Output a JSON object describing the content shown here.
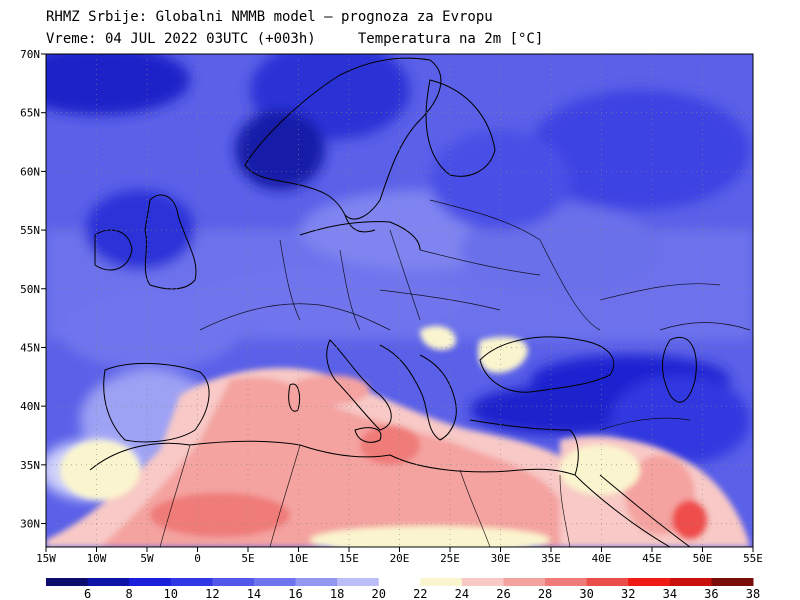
{
  "header": {
    "line1": "RHMZ Srbije: Globalni NMMB model — prognoza za Evropu",
    "line2": "Vreme: 04 JUL 2022 03UTC (+003h)     Temperatura na 2m [°C]"
  },
  "map": {
    "lon_range": [
      -15,
      55
    ],
    "lat_range": [
      28,
      70
    ],
    "lon_ticks": [
      {
        "value": -15,
        "label": "15W"
      },
      {
        "value": -10,
        "label": "10W"
      },
      {
        "value": -5,
        "label": "5W"
      },
      {
        "value": 0,
        "label": "0"
      },
      {
        "value": 5,
        "label": "5E"
      },
      {
        "value": 10,
        "label": "10E"
      },
      {
        "value": 15,
        "label": "15E"
      },
      {
        "value": 20,
        "label": "20E"
      },
      {
        "value": 25,
        "label": "25E"
      },
      {
        "value": 30,
        "label": "30E"
      },
      {
        "value": 35,
        "label": "35E"
      },
      {
        "value": 40,
        "label": "40E"
      },
      {
        "value": 45,
        "label": "45E"
      },
      {
        "value": 50,
        "label": "50E"
      },
      {
        "value": 55,
        "label": "55E"
      }
    ],
    "lat_ticks": [
      {
        "value": 70,
        "label": "70N"
      },
      {
        "value": 65,
        "label": "65N"
      },
      {
        "value": 60,
        "label": "60N"
      },
      {
        "value": 55,
        "label": "55N"
      },
      {
        "value": 50,
        "label": "50N"
      },
      {
        "value": 45,
        "label": "45N"
      },
      {
        "value": 40,
        "label": "40N"
      },
      {
        "value": 35,
        "label": "35N"
      },
      {
        "value": 30,
        "label": "30N"
      }
    ]
  },
  "colorbar": {
    "labels": [
      "6",
      "8",
      "10",
      "12",
      "14",
      "16",
      "18",
      "20",
      "22",
      "24",
      "26",
      "28",
      "30",
      "32",
      "34",
      "36",
      "38"
    ],
    "colors": [
      "#0b0c6b",
      "#0f14a8",
      "#1a1fdc",
      "#3237e6",
      "#5257ea",
      "#6f74ee",
      "#9397f2",
      "#babdf7",
      "#ffffff",
      "#fbf5cf",
      "#f8c9c6",
      "#f4a3a0",
      "#ef7c79",
      "#ea4e4b",
      "#ef1c16",
      "#c8100c",
      "#7a0c0a"
    ]
  }
}
